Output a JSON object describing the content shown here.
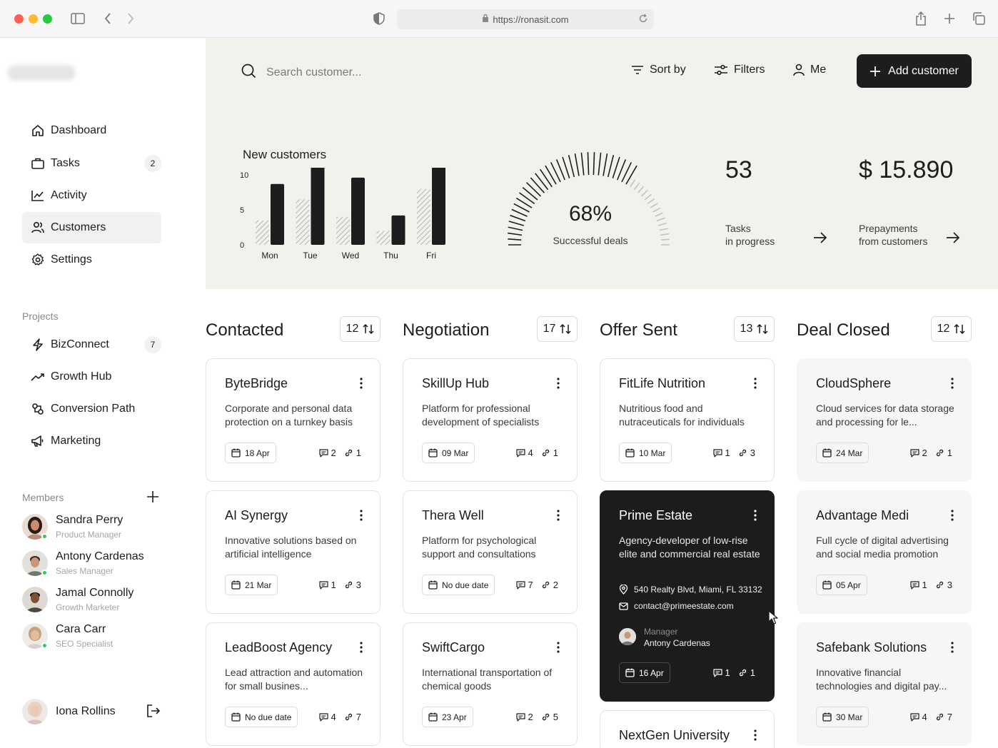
{
  "browser": {
    "url": "https://ronasit.com"
  },
  "sidebar": {
    "nav": [
      {
        "label": "Dashboard",
        "icon": "home-icon"
      },
      {
        "label": "Tasks",
        "icon": "briefcase-icon",
        "badge": "2"
      },
      {
        "label": "Activity",
        "icon": "activity-icon"
      },
      {
        "label": "Customers",
        "icon": "users-icon",
        "active": true
      },
      {
        "label": "Settings",
        "icon": "gear-icon"
      }
    ],
    "projects_label": "Projects",
    "projects": [
      {
        "label": "BizConnect",
        "icon": "bolt-icon",
        "badge": "7"
      },
      {
        "label": "Growth Hub",
        "icon": "trend-icon"
      },
      {
        "label": "Conversion Path",
        "icon": "conversion-icon"
      },
      {
        "label": "Marketing",
        "icon": "megaphone-icon"
      }
    ],
    "members_label": "Members",
    "members": [
      {
        "name": "Sandra Perry",
        "role": "Product Manager"
      },
      {
        "name": "Antony Cardenas",
        "role": "Sales Manager"
      },
      {
        "name": "Jamal Connolly",
        "role": "Growth Marketer"
      },
      {
        "name": "Cara Carr",
        "role": "SEO Specialist"
      }
    ],
    "current_user": {
      "name": "Iona Rollins"
    }
  },
  "toolbar": {
    "search_placeholder": "Search customer...",
    "sort_label": "Sort by",
    "filters_label": "Filters",
    "me_label": "Me",
    "add_label": "Add customer"
  },
  "stats": {
    "chart_title": "New customers",
    "gauge_value": "68%",
    "gauge_percent": 68,
    "gauge_label": "Successful deals",
    "tasks_value": "53",
    "tasks_label_1": "Tasks",
    "tasks_label_2": "in progress",
    "prepay_value": "$ 15.890",
    "prepay_label_1": "Prepayments",
    "prepay_label_2": "from customers"
  },
  "chart_data": {
    "type": "bar",
    "title": "New customers",
    "categories": [
      "Mon",
      "Tue",
      "Wed",
      "Thu",
      "Fri"
    ],
    "series": [
      {
        "values": [
          3.5,
          6.5,
          4.0,
          2.0,
          8.0
        ]
      },
      {
        "values": [
          8.7,
          11.2,
          9.6,
          4.2,
          11.1
        ]
      }
    ],
    "yticks": [
      0,
      5,
      10
    ],
    "ylim": [
      0,
      10
    ],
    "colors": {
      "hatched": "#b9b9b4",
      "solid": "#1d1d1d"
    }
  },
  "columns": [
    {
      "title": "Contacted",
      "count": "12",
      "cards": [
        {
          "title": "ByteBridge",
          "desc": "Corporate and personal data protection on a turnkey basis",
          "date": "18 Apr",
          "comments": "2",
          "links": "1"
        },
        {
          "title": "AI Synergy",
          "desc": "Innovative solutions based on artificial intelligence",
          "date": "21 Mar",
          "comments": "1",
          "links": "3"
        },
        {
          "title": "LeadBoost Agency",
          "desc": "Lead attraction and automation for small busines...",
          "date": "No due date",
          "comments": "4",
          "links": "7"
        }
      ]
    },
    {
      "title": "Negotiation",
      "count": "17",
      "cards": [
        {
          "title": "SkillUp Hub",
          "desc": "Platform for professional development of specialists",
          "date": "09 Mar",
          "comments": "4",
          "links": "1"
        },
        {
          "title": "Thera Well",
          "desc": "Platform for psychological support and consultations",
          "date": "No due date",
          "comments": "7",
          "links": "2"
        },
        {
          "title": "SwiftCargo",
          "desc": "International transportation of chemical goods",
          "date": "23 Apr",
          "comments": "2",
          "links": "5"
        }
      ]
    },
    {
      "title": "Offer Sent",
      "count": "13",
      "cards": [
        {
          "title": "FitLife Nutrition",
          "desc": "Nutritious food and nutraceuticals  for individuals",
          "date": "10 Mar",
          "comments": "1",
          "links": "3"
        },
        {
          "title": "Prime Estate",
          "desc": "Agency-developer of low-rise elite and commercial real estate",
          "address": "540 Realty Blvd, Miami, FL 33132",
          "email": "contact@primeestate.com",
          "manager_label": "Manager",
          "manager_name": "Antony Cardenas",
          "date": "16 Apr",
          "comments": "1",
          "links": "1"
        },
        {
          "title": "NextGen University"
        }
      ]
    },
    {
      "title": "Deal Closed",
      "count": "12",
      "cards": [
        {
          "title": "CloudSphere",
          "desc": "Cloud services for data storage and processing for le...",
          "date": "24 Mar",
          "comments": "2",
          "links": "1"
        },
        {
          "title": "Advantage Medi",
          "desc": "Full cycle of digital advertising and social media promotion",
          "date": "05 Apr",
          "comments": "1",
          "links": "3"
        },
        {
          "title": "Safebank Solutions",
          "desc": "Innovative financial technologies and digital pay...",
          "date": "30 Mar",
          "comments": "4",
          "links": "7"
        }
      ]
    }
  ]
}
